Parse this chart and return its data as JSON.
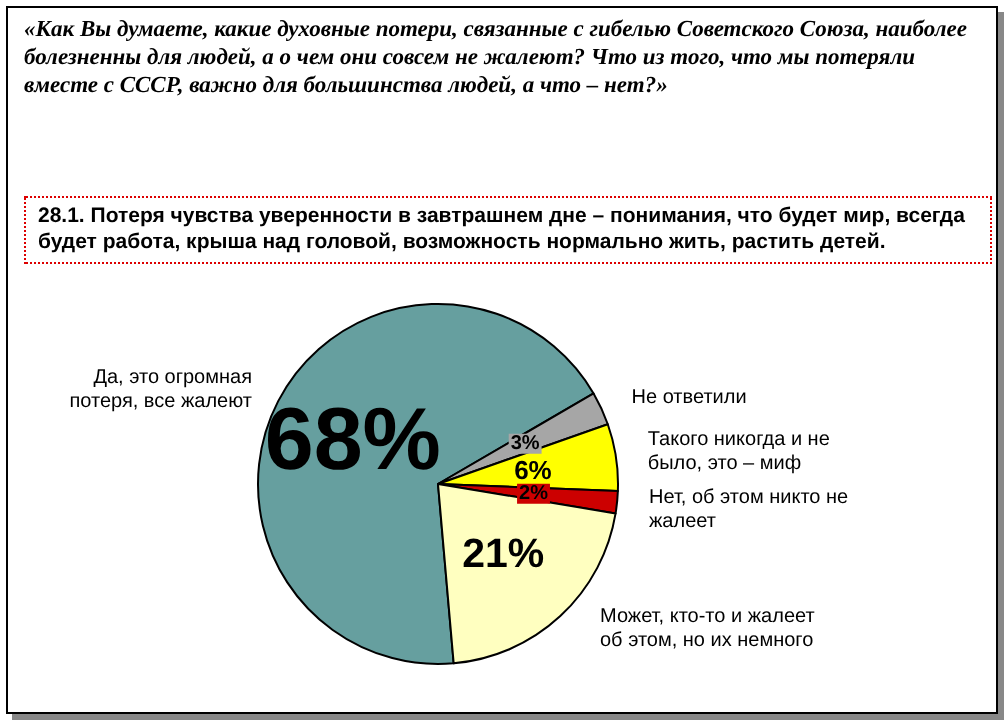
{
  "chart_data": {
    "type": "pie",
    "title": "«Как Вы думаете, какие духовные потери, связанные с гибелью Советского Союза, наиболее болезненны для людей, а о чем они совсем не жалеют? Что из того, что мы потеряли вместе с СССР, важно для большинства людей, а что – нет?»",
    "subtitle": "28.1. Потеря чувства уверенности в завтрашнем дне – понимания, что будет мир, всегда будет работа, крыша над головой, возможность нормально жить, растить детей.",
    "categories": [
      "Да, это огромная потеря, все жалеют",
      "Не ответили",
      "Такого никогда и не было, это – миф",
      "Нет, об этом никто не жалеет",
      "Может, кто-то и жалеет об этом, но их немного"
    ],
    "values": [
      68,
      3,
      6,
      2,
      21
    ],
    "colors": [
      "#669f9f",
      "#a6a6a6",
      "#ffff00",
      "#cc0000",
      "#ffffc0"
    ],
    "value_labels": [
      "68%",
      "3%",
      "6%",
      "2%",
      "21%"
    ]
  }
}
